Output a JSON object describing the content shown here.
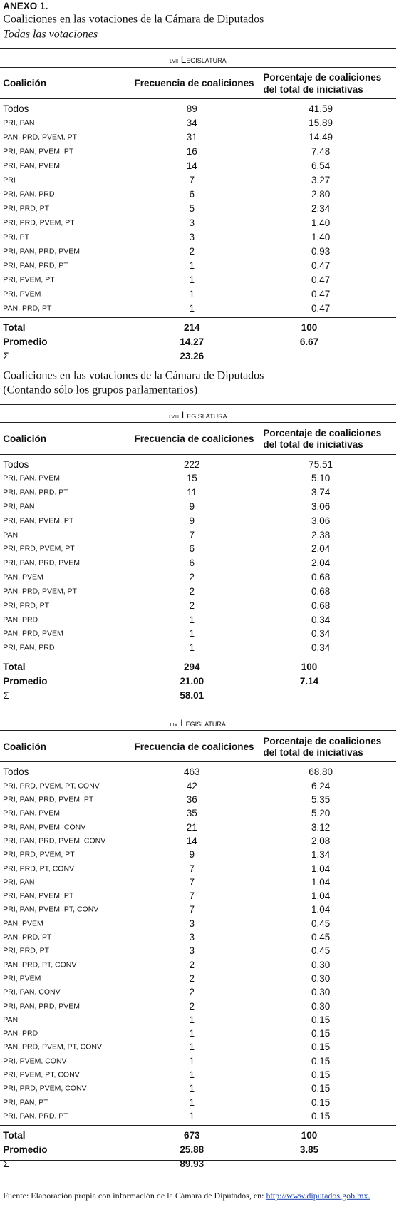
{
  "header": {
    "label": "ANEXO 1."
  },
  "tables": [
    {
      "title": "Coaliciones en las votaciones de la Cámara de Diputados",
      "subtitle": "Todas las votaciones",
      "legislature": "LVII Legislatura",
      "columns": [
        "Coalición",
        "Frecuencia de coaliciones",
        "Porcentaje de coaliciones del total de iniciativas"
      ],
      "rows": [
        [
          "Todos",
          "89",
          "41.59"
        ],
        [
          "PRI, PAN",
          "34",
          "15.89"
        ],
        [
          "PAN, PRD, PVEM, PT",
          "31",
          "14.49"
        ],
        [
          "PRI, PAN, PVEM, PT",
          "16",
          "7.48"
        ],
        [
          "PRI, PAN, PVEM",
          "14",
          "6.54"
        ],
        [
          "PRI",
          "7",
          "3.27"
        ],
        [
          "PRI, PAN, PRD",
          "6",
          "2.80"
        ],
        [
          "PRI, PRD, PT",
          "5",
          "2.34"
        ],
        [
          "PRI, PRD, PVEM, PT",
          "3",
          "1.40"
        ],
        [
          "PRI, PT",
          "3",
          "1.40"
        ],
        [
          "PRI, PAN, PRD, PVEM",
          "2",
          "0.93"
        ],
        [
          "PRI, PAN, PRD, PT",
          "1",
          "0.47"
        ],
        [
          "PRI, PVEM, PT",
          "1",
          "0.47"
        ],
        [
          "PRI, PVEM",
          "1",
          "0.47"
        ],
        [
          "PAN, PRD, PT",
          "1",
          "0.47"
        ]
      ],
      "summary": [
        [
          "Total",
          "214",
          "100"
        ],
        [
          "Promedio",
          "14.27",
          "6.67"
        ],
        [
          "Σ",
          "23.26"
        ]
      ]
    },
    {
      "title": "Coaliciones en las votaciones de la Cámara de Diputados",
      "subtitle": "(Contando sólo los grupos parlamentarios)",
      "legislature": "LVIII Legislatura",
      "columns": [
        "Coalición",
        "Frecuencia de coaliciones",
        "Porcentaje de coaliciones del total de iniciativas"
      ],
      "rows": [
        [
          "Todos",
          "222",
          "75.51"
        ],
        [
          "PRI, PAN, PVEM",
          "15",
          "5.10"
        ],
        [
          "PRI, PAN, PRD, PT",
          "11",
          "3.74"
        ],
        [
          "PRI, PAN",
          "9",
          "3.06"
        ],
        [
          "PRI, PAN, PVEM, PT",
          "9",
          "3.06"
        ],
        [
          "PAN",
          "7",
          "2.38"
        ],
        [
          "PRI, PRD, PVEM, PT",
          "6",
          "2.04"
        ],
        [
          "PRI, PAN, PRD, PVEM",
          "6",
          "2.04"
        ],
        [
          "PAN, PVEM",
          "2",
          "0.68"
        ],
        [
          "PAN, PRD, PVEM, PT",
          "2",
          "0.68"
        ],
        [
          "PRI, PRD, PT",
          "2",
          "0.68"
        ],
        [
          "PAN, PRD",
          "1",
          "0.34"
        ],
        [
          "PAN, PRD, PVEM",
          "1",
          "0.34"
        ],
        [
          "PRI, PAN, PRD",
          "1",
          "0.34"
        ]
      ],
      "summary": [
        [
          "Total",
          "294",
          "100"
        ],
        [
          "Promedio",
          "21.00",
          "7.14"
        ],
        [
          "Σ",
          "58.01"
        ]
      ]
    },
    {
      "legislature": "LIX Legislatura",
      "columns": [
        "Coalición",
        "Frecuencia de coaliciones",
        "Porcentaje de coaliciones del total de iniciativas"
      ],
      "rows": [
        [
          "Todos",
          "463",
          "68.80"
        ],
        [
          "PRI, PRD, PVEM, PT, CONV",
          "42",
          "6.24"
        ],
        [
          "PRI, PAN, PRD, PVEM, PT",
          "36",
          "5.35"
        ],
        [
          "PRI, PAN, PVEM",
          "35",
          "5.20"
        ],
        [
          "PRI, PAN, PVEM, CONV",
          "21",
          "3.12"
        ],
        [
          "PRI, PAN, PRD, PVEM, CONV",
          "14",
          "2.08"
        ],
        [
          "PRI, PRD, PVEM, PT",
          "9",
          "1.34"
        ],
        [
          "PRI, PRD, PT, CONV",
          "7",
          "1.04"
        ],
        [
          "PRI, PAN",
          "7",
          "1.04"
        ],
        [
          "PRI, PAN, PVEM, PT",
          "7",
          "1.04"
        ],
        [
          "PRI, PAN, PVEM, PT, CONV",
          "7",
          "1.04"
        ],
        [
          "PAN, PVEM",
          "3",
          "0.45"
        ],
        [
          "PAN, PRD, PT",
          "3",
          "0.45"
        ],
        [
          "PRI, PRD, PT",
          "3",
          "0.45"
        ],
        [
          "PAN, PRD, PT, CONV",
          "2",
          "0.30"
        ],
        [
          "PRI, PVEM",
          "2",
          "0.30"
        ],
        [
          "PRI, PAN, CONV",
          "2",
          "0.30"
        ],
        [
          "PRI, PAN, PRD, PVEM",
          "2",
          "0.30"
        ],
        [
          "PAN",
          "1",
          "0.15"
        ],
        [
          "PAN, PRD",
          "1",
          "0.15"
        ],
        [
          "PAN, PRD, PVEM, PT, CONV",
          "1",
          "0.15"
        ],
        [
          "PRI, PVEM, CONV",
          "1",
          "0.15"
        ],
        [
          "PRI, PVEM, PT, CONV",
          "1",
          "0.15"
        ],
        [
          "PRI, PRD, PVEM, CONV",
          "1",
          "0.15"
        ],
        [
          "PRI, PAN, PT",
          "1",
          "0.15"
        ],
        [
          "PRI, PAN, PRD, PT",
          "1",
          "0.15"
        ]
      ],
      "summary": [
        [
          "Total",
          "673",
          "100"
        ],
        [
          "Promedio",
          "25.88",
          "3.85"
        ],
        [
          "Σ",
          "89.93"
        ]
      ]
    }
  ],
  "footer": {
    "text": "Fuente: Elaboración propia con información de la Cámara de Diputados, en: ",
    "link": "http://www.diputados.gob.mx."
  }
}
